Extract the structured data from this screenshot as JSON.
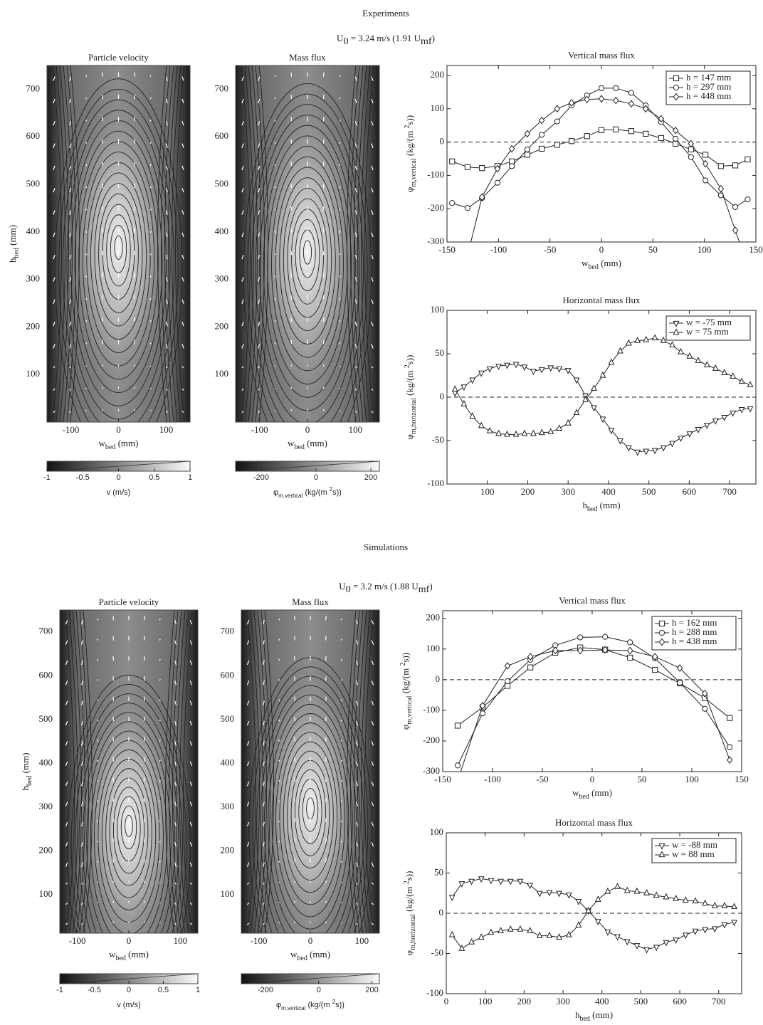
{
  "sections": [
    {
      "title": "Experiments",
      "subtitle": [
        {
          "text": "U"
        },
        {
          "text": "0",
          "shift": "sub"
        },
        {
          "text": " = 3.24 m/s (1.91 U"
        },
        {
          "text": "mf",
          "shift": "sub"
        },
        {
          "text": ")"
        }
      ]
    },
    {
      "title": "Simulations",
      "subtitle": [
        {
          "text": "U"
        },
        {
          "text": "0",
          "shift": "sub"
        },
        {
          "text": " = 3.2 m/s (1.88 U"
        },
        {
          "text": "mf",
          "shift": "sub"
        },
        {
          "text": ")"
        }
      ]
    }
  ],
  "chart_data": [
    {
      "type": "contour",
      "title": "Particle velocity",
      "xlim": [
        -150,
        150
      ],
      "xticks": [
        -100,
        0,
        100
      ],
      "ylim": [
        0,
        750
      ],
      "yticks": [
        100,
        200,
        300,
        400,
        500,
        600,
        700
      ],
      "xlabel": [
        {
          "text": "w"
        },
        {
          "text": "bed",
          "shift": "sub"
        },
        {
          "text": "  (mm)"
        }
      ],
      "ylabel": [
        {
          "text": "h"
        },
        {
          "text": "bed",
          "shift": "sub"
        },
        {
          "text": "  (mm)"
        }
      ],
      "colorbar": {
        "lim": [
          -1,
          1
        ],
        "ticks": [
          -1,
          -0.5,
          0,
          0.5,
          1
        ],
        "label": [
          {
            "text": "v (m/s)"
          }
        ]
      }
    },
    {
      "type": "contour",
      "title": "Mass flux",
      "xlim": [
        -150,
        150
      ],
      "xticks": [
        -100,
        0,
        100
      ],
      "ylim": [
        0,
        750
      ],
      "yticks": [
        100,
        200,
        300,
        400,
        500,
        600,
        700
      ],
      "xlabel": [
        {
          "text": "w"
        },
        {
          "text": "bed",
          "shift": "sub"
        },
        {
          "text": "  (mm)"
        }
      ],
      "colorbar": {
        "lim": [
          -293,
          231
        ],
        "ticks": [
          -200,
          0,
          200
        ],
        "label": [
          {
            "text": "φ"
          },
          {
            "text": "m,vertical",
            "shift": "sub"
          },
          {
            "text": "  (kg/(m "
          },
          {
            "text": "2",
            "shift": "sup"
          },
          {
            "text": "s))"
          }
        ]
      }
    },
    {
      "type": "line",
      "title": "Vertical mass flux",
      "xlim": [
        -150,
        150
      ],
      "xticks": [
        -150,
        -100,
        -50,
        0,
        50,
        100,
        150
      ],
      "ylim": [
        -300,
        230
      ],
      "yticks": [
        -300,
        -200,
        -100,
        0,
        100,
        200
      ],
      "hline": 0,
      "legend": "upper right",
      "xlabel": [
        {
          "text": "w"
        },
        {
          "text": "bed",
          "shift": "sub"
        },
        {
          "text": "  (mm)"
        }
      ],
      "ylabel": [
        {
          "text": "φ"
        },
        {
          "text": "m,vertical",
          "shift": "sub"
        },
        {
          "text": "  (kg/(m "
        },
        {
          "text": "2",
          "shift": "sup"
        },
        {
          "text": "s))"
        }
      ],
      "series": [
        {
          "name": "h = 147 mm",
          "marker": "square",
          "color": "#222222",
          "x": [
            -145,
            -130,
            -116,
            -101,
            -87,
            -72,
            -58,
            -43,
            -29,
            -14,
            0,
            14,
            29,
            43,
            58,
            72,
            87,
            101,
            116,
            130,
            142
          ],
          "values": [
            -58,
            -75,
            -78,
            -72,
            -58,
            -38,
            -20,
            -8,
            3,
            18,
            36,
            38,
            33,
            25,
            12,
            -5,
            -22,
            -38,
            -72,
            -70,
            -52
          ]
        },
        {
          "name": "h = 297 mm",
          "marker": "circle",
          "color": "#222222",
          "x": [
            -145,
            -130,
            -116,
            -101,
            -87,
            -72,
            -58,
            -43,
            -29,
            -14,
            0,
            14,
            29,
            43,
            58,
            72,
            87,
            101,
            116,
            130,
            142
          ],
          "values": [
            -183,
            -198,
            -168,
            -122,
            -72,
            -22,
            22,
            62,
            110,
            140,
            162,
            162,
            148,
            110,
            60,
            10,
            -45,
            -115,
            -160,
            -195,
            -172
          ]
        },
        {
          "name": "h = 448 mm",
          "marker": "diamond",
          "color": "#222222",
          "x": [
            -130,
            -116,
            -101,
            -87,
            -72,
            -58,
            -43,
            -29,
            -14,
            0,
            14,
            29,
            43,
            58,
            72,
            87,
            101,
            116,
            130,
            142
          ],
          "values": [
            -340,
            -165,
            -80,
            -20,
            25,
            65,
            100,
            118,
            128,
            130,
            125,
            115,
            100,
            70,
            35,
            -5,
            -65,
            -140,
            -265,
            -370
          ]
        }
      ]
    },
    {
      "type": "line",
      "title": "Horizontal mass flux",
      "xlim": [
        0,
        765
      ],
      "xticks": [
        100,
        200,
        300,
        400,
        500,
        600,
        700
      ],
      "ylim": [
        -100,
        100
      ],
      "yticks": [
        -100,
        -50,
        0,
        50,
        100
      ],
      "hline": 0,
      "legend": "upper right",
      "xlabel": [
        {
          "text": "h"
        },
        {
          "text": "bed",
          "shift": "sub"
        },
        {
          "text": "  (mm)"
        }
      ],
      "ylabel": [
        {
          "text": "φ"
        },
        {
          "text": "m,horizontal",
          "shift": "sub"
        },
        {
          "text": "  (kg/(m "
        },
        {
          "text": "2",
          "shift": "sup"
        },
        {
          "text": "s))"
        }
      ],
      "series": [
        {
          "name": "w = -75 mm",
          "marker": "triangle-down",
          "color": "#222222",
          "x": [
            20,
            42,
            63,
            85,
            106,
            128,
            149,
            171,
            192,
            214,
            235,
            257,
            278,
            300,
            321,
            343,
            364,
            386,
            407,
            429,
            450,
            472,
            493,
            515,
            536,
            558,
            579,
            601,
            622,
            644,
            665,
            687,
            708,
            730,
            751
          ],
          "values": [
            5,
            12,
            20,
            28,
            33,
            36,
            37,
            38,
            35,
            30,
            32,
            34,
            33,
            31,
            20,
            2,
            -12,
            -25,
            -38,
            -50,
            -58,
            -63,
            -62,
            -61,
            -58,
            -53,
            -47,
            -42,
            -37,
            -32,
            -27,
            -23,
            -18,
            -14,
            -13
          ]
        },
        {
          "name": "w = 75 mm",
          "marker": "triangle-up",
          "color": "#222222",
          "x": [
            20,
            42,
            63,
            85,
            106,
            128,
            149,
            171,
            192,
            214,
            235,
            257,
            278,
            300,
            321,
            343,
            364,
            386,
            407,
            429,
            450,
            472,
            493,
            515,
            536,
            558,
            579,
            601,
            622,
            644,
            665,
            687,
            708,
            730,
            751
          ],
          "values": [
            9,
            -8,
            -22,
            -33,
            -39,
            -42,
            -43,
            -43,
            -42,
            -42,
            -41,
            -40,
            -36,
            -30,
            -18,
            -3,
            10,
            25,
            40,
            53,
            62,
            65,
            66,
            68,
            65,
            60,
            52,
            47,
            42,
            37,
            33,
            28,
            24,
            18,
            14
          ]
        }
      ]
    },
    {
      "type": "contour",
      "title": "Particle velocity",
      "xlim": [
        -134,
        134
      ],
      "xticks": [
        -100,
        0,
        100
      ],
      "ylim": [
        12,
        750
      ],
      "yticks": [
        100,
        200,
        300,
        400,
        500,
        600,
        700
      ],
      "xlabel": [
        {
          "text": "w"
        },
        {
          "text": "bed",
          "shift": "sub"
        },
        {
          "text": "  (mm)"
        }
      ],
      "ylabel": [
        {
          "text": "h"
        },
        {
          "text": "bed",
          "shift": "sub"
        },
        {
          "text": "  (mm)"
        }
      ],
      "colorbar": {
        "lim": [
          -1,
          1
        ],
        "ticks": [
          -1,
          -0.5,
          0,
          0.5,
          1
        ],
        "label": [
          {
            "text": "v (m/s)"
          }
        ]
      }
    },
    {
      "type": "contour",
      "title": "Mass flux",
      "xlim": [
        -134,
        134
      ],
      "xticks": [
        -100,
        0,
        100
      ],
      "ylim": [
        12,
        750
      ],
      "yticks": [
        100,
        200,
        300,
        400,
        500,
        600,
        700
      ],
      "xlabel": [
        {
          "text": "w"
        },
        {
          "text": "bed",
          "shift": "sub"
        },
        {
          "text": "  (mm)"
        }
      ],
      "colorbar": {
        "lim": [
          -291,
          228
        ],
        "ticks": [
          -200,
          0,
          200
        ],
        "label": [
          {
            "text": "φ"
          },
          {
            "text": "m,vertical",
            "shift": "sub"
          },
          {
            "text": "  (kg/(m "
          },
          {
            "text": "2",
            "shift": "sup"
          },
          {
            "text": "s))"
          }
        ]
      }
    },
    {
      "type": "line",
      "title": "Vertical mass flux",
      "xlim": [
        -150,
        150
      ],
      "xticks": [
        -150,
        -100,
        -50,
        0,
        50,
        100,
        150
      ],
      "ylim": [
        -300,
        225
      ],
      "yticks": [
        -300,
        -200,
        -100,
        0,
        100,
        200
      ],
      "hline": 0,
      "legend": "upper right",
      "xlabel": [
        {
          "text": "w"
        },
        {
          "text": "bed",
          "shift": "sub"
        },
        {
          "text": "  (mm)"
        }
      ],
      "ylabel": [
        {
          "text": "φ"
        },
        {
          "text": "m,vertical",
          "shift": "sub"
        },
        {
          "text": "  (kg/(m "
        },
        {
          "text": "2",
          "shift": "sup"
        },
        {
          "text": "s))"
        }
      ],
      "series": [
        {
          "name": "h = 162 mm",
          "marker": "square",
          "color": "#222222",
          "x": [
            -135,
            -110,
            -85,
            -62,
            -37,
            -12,
            13,
            38,
            63,
            88,
            113,
            138
          ],
          "values": [
            -150,
            -90,
            -20,
            40,
            88,
            105,
            98,
            72,
            32,
            -12,
            -60,
            -125
          ]
        },
        {
          "name": "h = 288 mm",
          "marker": "circle",
          "color": "#222222",
          "x": [
            -135,
            -110,
            -85,
            -62,
            -37,
            -12,
            13,
            38,
            63,
            88,
            113,
            138
          ],
          "values": [
            -280,
            -110,
            -5,
            65,
            112,
            138,
            140,
            122,
            70,
            -10,
            -95,
            -220
          ]
        },
        {
          "name": "h = 438 mm",
          "marker": "diamond",
          "color": "#222222",
          "x": [
            -135,
            -110,
            -85,
            -62,
            -37,
            -12,
            13,
            38,
            63,
            88,
            113,
            138
          ],
          "values": [
            -330,
            -85,
            45,
            75,
            95,
            95,
            97,
            95,
            75,
            38,
            -45,
            -262
          ]
        }
      ]
    },
    {
      "type": "line",
      "title": "Horizontal mass flux",
      "xlim": [
        0,
        759
      ],
      "xticks": [
        0,
        100,
        200,
        300,
        400,
        500,
        600,
        700
      ],
      "ylim": [
        -100,
        100
      ],
      "yticks": [
        -100,
        -50,
        0,
        50,
        100
      ],
      "hline": 0,
      "legend": "upper right",
      "xlabel": [
        {
          "text": "h"
        },
        {
          "text": "bed",
          "shift": "sub"
        },
        {
          "text": "  (mm)"
        }
      ],
      "ylabel": [
        {
          "text": "φ"
        },
        {
          "text": "m,horizontal",
          "shift": "sub"
        },
        {
          "text": "  (kg/(m "
        },
        {
          "text": "2",
          "shift": "sup"
        },
        {
          "text": "s))"
        }
      ],
      "series": [
        {
          "name": "w = -88 mm",
          "marker": "triangle-down",
          "color": "#222222",
          "x": [
            15,
            40,
            65,
            90,
            115,
            140,
            165,
            190,
            215,
            240,
            265,
            290,
            315,
            340,
            365,
            390,
            415,
            440,
            465,
            490,
            515,
            540,
            565,
            590,
            615,
            640,
            665,
            690,
            715,
            740
          ],
          "values": [
            20,
            37,
            40,
            43,
            41,
            40,
            40,
            40,
            35,
            25,
            26,
            25,
            23,
            15,
            3,
            -10,
            -23,
            -29,
            -35,
            -40,
            -45,
            -42,
            -36,
            -33,
            -27,
            -22,
            -20,
            -19,
            -14,
            -11
          ]
        },
        {
          "name": "w = 88 mm",
          "marker": "triangle-up",
          "color": "#222222",
          "x": [
            15,
            40,
            65,
            90,
            115,
            140,
            165,
            190,
            215,
            240,
            265,
            290,
            315,
            340,
            365,
            390,
            415,
            440,
            465,
            490,
            515,
            540,
            565,
            590,
            615,
            640,
            665,
            690,
            715,
            740
          ],
          "values": [
            -27,
            -44,
            -36,
            -30,
            -24,
            -22,
            -20,
            -20,
            -22,
            -28,
            -28,
            -30,
            -27,
            -15,
            3,
            17,
            27,
            33,
            28,
            27,
            25,
            22,
            20,
            18,
            16,
            15,
            12,
            9,
            9,
            8
          ]
        }
      ]
    }
  ]
}
